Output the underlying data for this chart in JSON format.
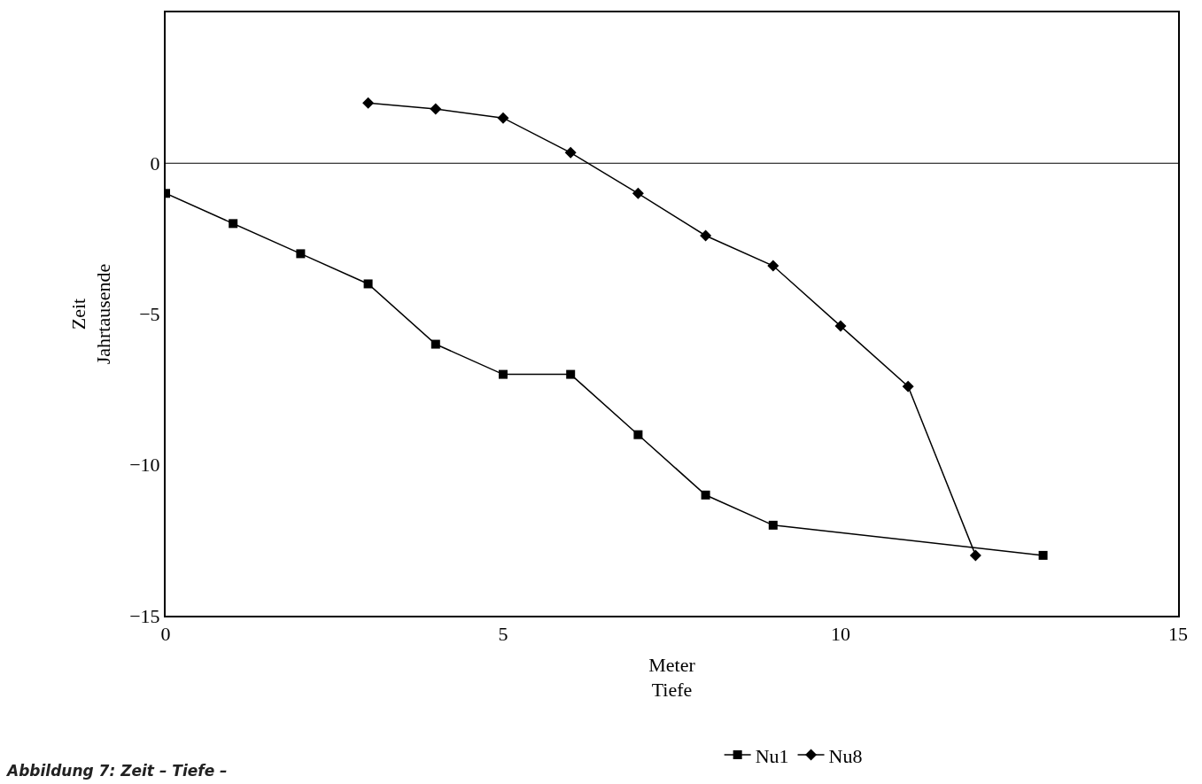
{
  "chart_data": {
    "type": "line",
    "xlabel": "Meter\nTiefe",
    "ylabel": "Zeit\nJahrtausende",
    "annotations": [
      "Abbildung 7: Zeit – Tiefe –"
    ],
    "xlim": [
      0,
      15
    ],
    "xticks": [
      0,
      5,
      10,
      15
    ],
    "ylim": [
      -15,
      5
    ],
    "yticks": [
      -15,
      -10,
      -5,
      0
    ],
    "ref_lines": [
      {
        "axis": "y",
        "value": 0,
        "color": "#000000"
      }
    ],
    "legend": "bottom",
    "grid": false,
    "line_style": "solid",
    "series": [
      {
        "name": "Nu1",
        "color": "#000000",
        "marker": "square",
        "x": [
          0,
          1,
          2,
          3,
          4,
          5,
          6,
          7,
          8,
          9,
          13
        ],
        "values": [
          -1,
          -2,
          -3,
          -4,
          -6,
          -7,
          -7,
          -9,
          -11,
          -12,
          -13
        ]
      },
      {
        "name": "Nu8",
        "color": "#000000",
        "marker": "diamond",
        "x": [
          3,
          4,
          5,
          6,
          7,
          8,
          9,
          10,
          11,
          12
        ],
        "values": [
          2,
          1.8,
          1.5,
          0.35,
          -1,
          -2.4,
          -3.4,
          -5.4,
          -7.4,
          -13
        ]
      }
    ]
  }
}
